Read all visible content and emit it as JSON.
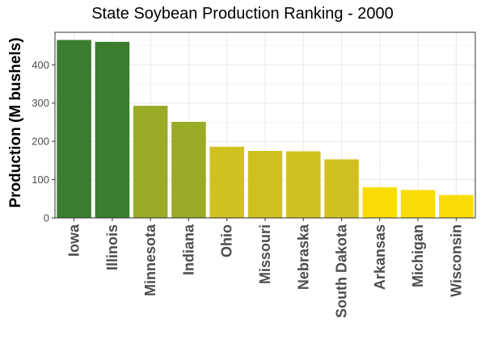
{
  "chart_data": {
    "type": "bar",
    "title": "State Soybean Production Ranking - 2000",
    "xlabel": "",
    "ylabel": "Production (M bushels)",
    "ylim": [
      0,
      485
    ],
    "yticks": [
      0,
      100,
      200,
      300,
      400
    ],
    "grid": true,
    "categories": [
      "Iowa",
      "Illinois",
      "Minnesota",
      "Indiana",
      "Ohio",
      "Missouri",
      "Nebraska",
      "South Dakota",
      "Arkansas",
      "Michigan",
      "Wisconsin"
    ],
    "values": [
      465,
      460,
      293,
      251,
      186,
      175,
      174,
      153,
      80,
      73,
      60
    ],
    "colors": [
      "#3a7d2f",
      "#3a7d2f",
      "#9bab28",
      "#9bab28",
      "#cfc21f",
      "#cfc21f",
      "#cfc21f",
      "#cfc21f",
      "#f9dc06",
      "#f9dc06",
      "#f9dc06"
    ]
  }
}
